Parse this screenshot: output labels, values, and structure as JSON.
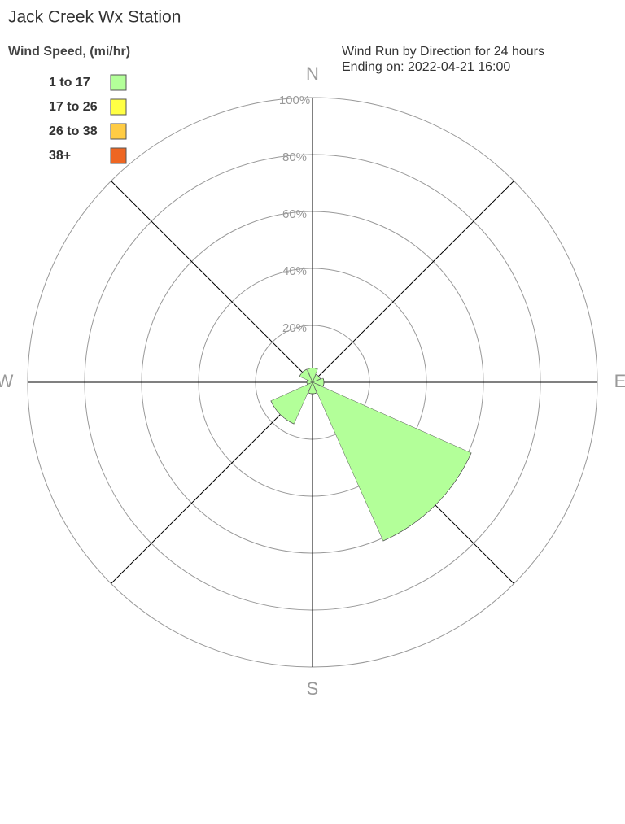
{
  "chart_data": {
    "type": "windrose",
    "title": "Jack Creek Wx Station",
    "legend_title": "Wind Speed, (mi/hr)",
    "subtitle": [
      "Wind Run by Direction for 24 hours",
      "Ending on: 2022-04-21 16:00"
    ],
    "categories": [
      "N",
      null,
      "E",
      null,
      "S",
      null,
      "W",
      null
    ],
    "series": [
      {
        "name": "1 to 17",
        "color": "#b3ff99",
        "values": [
          5,
          3,
          4,
          61,
          4,
          16,
          2,
          5
        ]
      },
      {
        "name": "17 to 26",
        "color": "#ffff44",
        "values": [
          0,
          0,
          0,
          0,
          0,
          0,
          0,
          0
        ]
      },
      {
        "name": "26 to 38",
        "color": "#ffcc44",
        "values": [
          0,
          0,
          0,
          0,
          0,
          0,
          0,
          0
        ]
      },
      {
        "name": "38+",
        "color": "#ee6622",
        "values": [
          0,
          0,
          0,
          0,
          0,
          0,
          0,
          0
        ]
      }
    ],
    "rlim": [
      0,
      100
    ],
    "rticks": [
      {
        "value": 20,
        "label": "20%"
      },
      {
        "value": 40,
        "label": "40%"
      },
      {
        "value": 60,
        "label": "60%"
      },
      {
        "value": 80,
        "label": "80%"
      },
      {
        "value": 100,
        "label": "100%"
      }
    ]
  }
}
